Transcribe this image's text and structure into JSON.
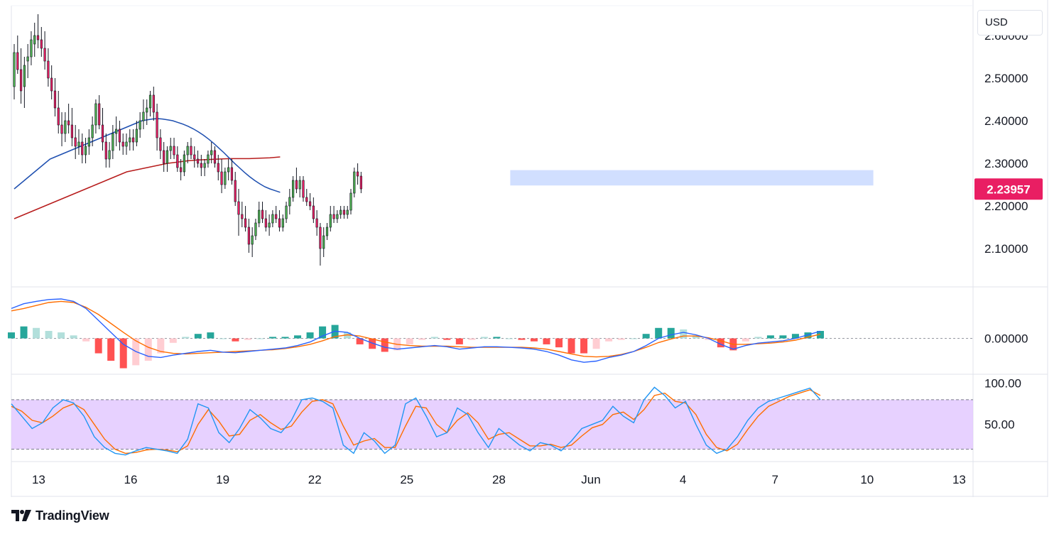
{
  "header": {
    "currency": "USD"
  },
  "brand": {
    "name": "TradingView",
    "logo_icon": "tradingview-logo-icon"
  },
  "colors": {
    "up": "#22ab94",
    "down": "#e91e63",
    "up_body": "#4caf50",
    "ma_fast": "#1e4fb0",
    "ma_slow": "#b71c1c",
    "zone": "#c9d9ff",
    "price_tag": "#e91e63",
    "macd": "#2962ff",
    "signal": "#ff6d00",
    "hist_pos_strong": "#26a69a",
    "hist_pos_weak": "#b2dfdb",
    "hist_neg_strong": "#ff5252",
    "hist_neg_weak": "#ffcdd2",
    "stoch_k": "#2196f3",
    "stoch_d": "#ff6d00",
    "stoch_band": "#e1c6ff"
  },
  "chart_data": [
    {
      "type": "candlestick",
      "ylim": [
        2.01,
        2.67
      ],
      "y_ticks": [
        "2.60000",
        "2.50000",
        "2.40000",
        "2.30000",
        "2.20000",
        "2.10000"
      ],
      "y_tick_values": [
        2.6,
        2.5,
        2.4,
        2.3,
        2.2,
        2.1
      ],
      "x_ticks": [
        "13",
        "16",
        "19",
        "22",
        "25",
        "28",
        "Jun",
        "4",
        "7",
        "10",
        "13"
      ],
      "x_tick_index": [
        4,
        40,
        76,
        112,
        148,
        184,
        220,
        256,
        292,
        328,
        364
      ],
      "last_price": 2.23957,
      "last_price_label": "2.23957",
      "resistance_zone": {
        "low": 2.248,
        "high": 2.284,
        "from_index": 194,
        "to_index": 336
      },
      "candles": [
        [
          2.48,
          2.58,
          2.45,
          2.56
        ],
        [
          2.56,
          2.6,
          2.51,
          2.52
        ],
        [
          2.52,
          2.57,
          2.44,
          2.47
        ],
        [
          2.48,
          2.55,
          2.43,
          2.53
        ],
        [
          2.54,
          2.58,
          2.5,
          2.55
        ],
        [
          2.55,
          2.61,
          2.53,
          2.59
        ],
        [
          2.58,
          2.63,
          2.55,
          2.6
        ],
        [
          2.6,
          2.65,
          2.57,
          2.59
        ],
        [
          2.59,
          2.62,
          2.55,
          2.57
        ],
        [
          2.57,
          2.61,
          2.52,
          2.54
        ],
        [
          2.54,
          2.57,
          2.48,
          2.5
        ],
        [
          2.5,
          2.53,
          2.45,
          2.47
        ],
        [
          2.47,
          2.5,
          2.41,
          2.43
        ],
        [
          2.43,
          2.47,
          2.37,
          2.39
        ],
        [
          2.39,
          2.42,
          2.34,
          2.37
        ],
        [
          2.37,
          2.42,
          2.35,
          2.4
        ],
        [
          2.4,
          2.44,
          2.37,
          2.39
        ],
        [
          2.39,
          2.43,
          2.34,
          2.36
        ],
        [
          2.36,
          2.39,
          2.31,
          2.34
        ],
        [
          2.34,
          2.38,
          2.32,
          2.35
        ],
        [
          2.35,
          2.37,
          2.3,
          2.32
        ],
        [
          2.32,
          2.36,
          2.3,
          2.34
        ],
        [
          2.34,
          2.38,
          2.32,
          2.36
        ],
        [
          2.36,
          2.41,
          2.34,
          2.39
        ],
        [
          2.39,
          2.45,
          2.37,
          2.44
        ],
        [
          2.44,
          2.46,
          2.38,
          2.39
        ],
        [
          2.39,
          2.43,
          2.33,
          2.35
        ],
        [
          2.35,
          2.37,
          2.29,
          2.31
        ],
        [
          2.31,
          2.35,
          2.29,
          2.33
        ],
        [
          2.33,
          2.39,
          2.31,
          2.37
        ],
        [
          2.37,
          2.41,
          2.34,
          2.38
        ],
        [
          2.38,
          2.4,
          2.33,
          2.35
        ],
        [
          2.35,
          2.37,
          2.32,
          2.34
        ],
        [
          2.34,
          2.37,
          2.32,
          2.35
        ],
        [
          2.35,
          2.38,
          2.33,
          2.36
        ],
        [
          2.36,
          2.38,
          2.33,
          2.35
        ],
        [
          2.35,
          2.4,
          2.34,
          2.38
        ],
        [
          2.38,
          2.42,
          2.36,
          2.4
        ],
        [
          2.4,
          2.45,
          2.38,
          2.42
        ],
        [
          2.42,
          2.45,
          2.39,
          2.43
        ],
        [
          2.43,
          2.47,
          2.41,
          2.46
        ],
        [
          2.46,
          2.48,
          2.4,
          2.42
        ],
        [
          2.42,
          2.44,
          2.33,
          2.36
        ],
        [
          2.36,
          2.38,
          2.31,
          2.33
        ],
        [
          2.33,
          2.35,
          2.28,
          2.3
        ],
        [
          2.3,
          2.34,
          2.28,
          2.33
        ],
        [
          2.33,
          2.36,
          2.31,
          2.34
        ],
        [
          2.34,
          2.36,
          2.31,
          2.32
        ],
        [
          2.32,
          2.34,
          2.28,
          2.29
        ],
        [
          2.29,
          2.31,
          2.26,
          2.28
        ],
        [
          2.28,
          2.33,
          2.27,
          2.32
        ],
        [
          2.32,
          2.35,
          2.3,
          2.34
        ],
        [
          2.34,
          2.36,
          2.31,
          2.32
        ],
        [
          2.32,
          2.34,
          2.29,
          2.31
        ],
        [
          2.31,
          2.33,
          2.29,
          2.3
        ],
        [
          2.3,
          2.32,
          2.27,
          2.29
        ],
        [
          2.29,
          2.31,
          2.27,
          2.3
        ],
        [
          2.3,
          2.33,
          2.29,
          2.32
        ],
        [
          2.32,
          2.35,
          2.3,
          2.33
        ],
        [
          2.33,
          2.34,
          2.29,
          2.3
        ],
        [
          2.3,
          2.32,
          2.26,
          2.28
        ],
        [
          2.28,
          2.31,
          2.23,
          2.25
        ],
        [
          2.25,
          2.29,
          2.24,
          2.28
        ],
        [
          2.28,
          2.31,
          2.26,
          2.29
        ],
        [
          2.29,
          2.31,
          2.25,
          2.26
        ],
        [
          2.26,
          2.28,
          2.2,
          2.21
        ],
        [
          2.21,
          2.24,
          2.13,
          2.18
        ],
        [
          2.18,
          2.21,
          2.15,
          2.17
        ],
        [
          2.17,
          2.2,
          2.14,
          2.15
        ],
        [
          2.15,
          2.17,
          2.09,
          2.11
        ],
        [
          2.11,
          2.15,
          2.08,
          2.13
        ],
        [
          2.13,
          2.17,
          2.12,
          2.16
        ],
        [
          2.16,
          2.21,
          2.15,
          2.19
        ],
        [
          2.19,
          2.21,
          2.16,
          2.17
        ],
        [
          2.17,
          2.19,
          2.14,
          2.15
        ],
        [
          2.15,
          2.18,
          2.13,
          2.16
        ],
        [
          2.16,
          2.19,
          2.15,
          2.18
        ],
        [
          2.18,
          2.2,
          2.16,
          2.17
        ],
        [
          2.17,
          2.19,
          2.14,
          2.15
        ],
        [
          2.15,
          2.18,
          2.14,
          2.17
        ],
        [
          2.17,
          2.21,
          2.16,
          2.2
        ],
        [
          2.2,
          2.24,
          2.18,
          2.22
        ],
        [
          2.22,
          2.27,
          2.21,
          2.26
        ],
        [
          2.26,
          2.29,
          2.23,
          2.24
        ],
        [
          2.24,
          2.27,
          2.22,
          2.26
        ],
        [
          2.26,
          2.27,
          2.21,
          2.22
        ],
        [
          2.22,
          2.24,
          2.2,
          2.21
        ],
        [
          2.21,
          2.23,
          2.19,
          2.2
        ],
        [
          2.2,
          2.22,
          2.16,
          2.17
        ],
        [
          2.17,
          2.19,
          2.13,
          2.15
        ],
        [
          2.15,
          2.16,
          2.06,
          2.1
        ],
        [
          2.1,
          2.15,
          2.08,
          2.13
        ],
        [
          2.13,
          2.16,
          2.12,
          2.15
        ],
        [
          2.15,
          2.2,
          2.14,
          2.18
        ],
        [
          2.18,
          2.2,
          2.16,
          2.17
        ],
        [
          2.17,
          2.19,
          2.16,
          2.18
        ],
        [
          2.18,
          2.2,
          2.17,
          2.19
        ],
        [
          2.19,
          2.2,
          2.17,
          2.18
        ],
        [
          2.18,
          2.2,
          2.17,
          2.19
        ],
        [
          2.19,
          2.24,
          2.18,
          2.23
        ],
        [
          2.23,
          2.29,
          2.22,
          2.28
        ],
        [
          2.28,
          2.3,
          2.25,
          2.27
        ],
        [
          2.27,
          2.28,
          2.23,
          2.24
        ]
      ],
      "ma_fast": [
        2.24,
        2.25,
        2.26,
        2.27,
        2.28,
        2.29,
        2.3,
        2.31,
        2.315,
        2.32,
        2.325,
        2.33,
        2.335,
        2.34,
        2.345,
        2.35,
        2.355,
        2.36,
        2.365,
        2.37,
        2.375,
        2.38,
        2.385,
        2.39,
        2.395,
        2.4,
        2.402,
        2.404,
        2.405,
        2.404,
        2.402,
        2.4,
        2.396,
        2.392,
        2.387,
        2.381,
        2.374,
        2.366,
        2.357,
        2.347,
        2.336,
        2.325,
        2.313,
        2.301,
        2.29,
        2.279,
        2.269,
        2.26,
        2.252,
        2.245,
        2.24,
        2.236,
        2.232
      ],
      "ma_fast_step": 2,
      "ma_fast_from": 0,
      "ma_slow": [
        2.17,
        2.18,
        2.19,
        2.2,
        2.21,
        2.22,
        2.23,
        2.24,
        2.25,
        2.26,
        2.27,
        2.28,
        2.285,
        2.29,
        2.295,
        2.3,
        2.303,
        2.306,
        2.308,
        2.309,
        2.31,
        2.311,
        2.311,
        2.311,
        2.312,
        2.313,
        2.315
      ],
      "ma_slow_step": 4,
      "ma_slow_from": 0
    },
    {
      "type": "macd",
      "ylim": [
        -0.06,
        0.085
      ],
      "zero_label": "0.00000",
      "macd": [
        0.05,
        0.058,
        0.062,
        0.065,
        0.066,
        0.062,
        0.05,
        0.03,
        0.01,
        -0.01,
        -0.022,
        -0.03,
        -0.032,
        -0.028,
        -0.025,
        -0.022,
        -0.02,
        -0.023,
        -0.024,
        -0.022,
        -0.02,
        -0.018,
        -0.016,
        -0.012,
        -0.006,
        0.004,
        0.012,
        0.01,
        0.0,
        -0.008,
        -0.015,
        -0.018,
        -0.016,
        -0.014,
        -0.012,
        -0.014,
        -0.018,
        -0.016,
        -0.014,
        -0.014,
        -0.015,
        -0.016,
        -0.018,
        -0.022,
        -0.028,
        -0.036,
        -0.04,
        -0.038,
        -0.032,
        -0.028,
        -0.022,
        -0.012,
        0.0,
        0.006,
        0.01,
        0.006,
        0.0,
        -0.01,
        -0.018,
        -0.012,
        -0.008,
        -0.006,
        -0.004,
        0.0,
        0.006,
        0.012
      ],
      "signal": [
        0.046,
        0.05,
        0.055,
        0.06,
        0.062,
        0.06,
        0.052,
        0.04,
        0.025,
        0.01,
        -0.004,
        -0.015,
        -0.022,
        -0.025,
        -0.026,
        -0.025,
        -0.024,
        -0.023,
        -0.022,
        -0.021,
        -0.02,
        -0.019,
        -0.017,
        -0.014,
        -0.01,
        -0.004,
        0.003,
        0.006,
        0.004,
        -0.001,
        -0.006,
        -0.01,
        -0.012,
        -0.013,
        -0.013,
        -0.013,
        -0.014,
        -0.015,
        -0.015,
        -0.015,
        -0.015,
        -0.015,
        -0.016,
        -0.018,
        -0.022,
        -0.026,
        -0.03,
        -0.031,
        -0.03,
        -0.027,
        -0.022,
        -0.015,
        -0.007,
        -0.001,
        0.004,
        0.004,
        0.001,
        -0.004,
        -0.01,
        -0.01,
        -0.009,
        -0.008,
        -0.006,
        -0.003,
        0.002,
        0.007
      ]
    },
    {
      "type": "stochastic",
      "ylim": [
        5,
        110
      ],
      "y_ticks": [
        "100.00",
        "50.00"
      ],
      "y_tick_values": [
        100,
        50
      ],
      "band": [
        20,
        80
      ],
      "k": [
        75,
        60,
        45,
        52,
        70,
        80,
        76,
        60,
        35,
        22,
        15,
        13,
        18,
        22,
        20,
        18,
        15,
        32,
        75,
        70,
        40,
        28,
        45,
        68,
        58,
        45,
        40,
        55,
        80,
        82,
        78,
        70,
        25,
        15,
        40,
        30,
        15,
        25,
        75,
        82,
        60,
        35,
        40,
        70,
        62,
        40,
        22,
        45,
        35,
        25,
        18,
        28,
        25,
        18,
        30,
        45,
        50,
        55,
        72,
        60,
        52,
        80,
        95,
        85,
        70,
        78,
        50,
        25,
        15,
        20,
        35,
        55,
        70,
        78,
        82,
        86,
        90,
        94,
        80
      ],
      "d": [
        72,
        66,
        55,
        52,
        60,
        70,
        75,
        68,
        50,
        32,
        20,
        15,
        16,
        19,
        20,
        19,
        17,
        24,
        50,
        68,
        54,
        36,
        38,
        55,
        62,
        52,
        44,
        48,
        65,
        78,
        80,
        75,
        48,
        25,
        30,
        33,
        22,
        22,
        48,
        72,
        70,
        50,
        40,
        55,
        64,
        52,
        32,
        38,
        40,
        32,
        24,
        24,
        26,
        22,
        25,
        36,
        46,
        50,
        62,
        65,
        56,
        68,
        85,
        88,
        78,
        76,
        62,
        38,
        22,
        18,
        26,
        44,
        60,
        72,
        78,
        84,
        88,
        92,
        85
      ]
    }
  ]
}
